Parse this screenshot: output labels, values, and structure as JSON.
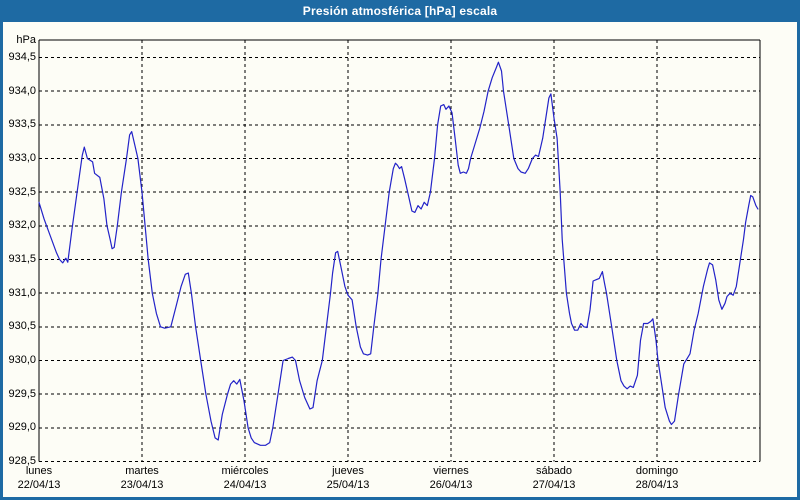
{
  "title": "Presión atmosférica [hPa] escala",
  "colors": {
    "titlebar": "#1e6aa3",
    "window_border": "#1e6aa3",
    "title_text": "#ffffff",
    "line": "#2323c8",
    "grid": "#000000",
    "background": "#fdfdf6",
    "label_text": "#000000"
  },
  "chart_data": {
    "type": "line",
    "title": "Presión atmosférica [hPa] escala",
    "ylabel": "hPa",
    "xlabel": "",
    "ylim": [
      928.5,
      934.5
    ],
    "yticks": [
      "934,5",
      "934,0",
      "933,5",
      "933,0",
      "932,5",
      "932,0",
      "931,5",
      "931,0",
      "930,5",
      "930,0",
      "929,5",
      "929,0",
      "928,5"
    ],
    "grid": "dashed",
    "legend": "none",
    "x_unit": "days since 22/04/13 00:00",
    "categories": [
      {
        "day": "lunes",
        "date": "22/04/13"
      },
      {
        "day": "martes",
        "date": "23/04/13"
      },
      {
        "day": "miércoles",
        "date": "24/04/13"
      },
      {
        "day": "jueves",
        "date": "25/04/13"
      },
      {
        "day": "viernes",
        "date": "26/04/13"
      },
      {
        "day": "sábado",
        "date": "27/04/13"
      },
      {
        "day": "domingo",
        "date": "28/04/13"
      }
    ],
    "series": [
      {
        "name": "Presión atmosférica [hPa]",
        "color": "#2323c8",
        "points": [
          [
            0.0,
            932.35
          ],
          [
            0.05,
            932.1
          ],
          [
            0.11,
            931.85
          ],
          [
            0.17,
            931.6
          ],
          [
            0.2,
            931.5
          ],
          [
            0.23,
            931.45
          ],
          [
            0.26,
            931.52
          ],
          [
            0.28,
            931.46
          ],
          [
            0.32,
            931.95
          ],
          [
            0.37,
            932.5
          ],
          [
            0.42,
            933.05
          ],
          [
            0.44,
            933.17
          ],
          [
            0.47,
            933.0
          ],
          [
            0.52,
            932.95
          ],
          [
            0.54,
            932.78
          ],
          [
            0.59,
            932.72
          ],
          [
            0.63,
            932.4
          ],
          [
            0.66,
            932.0
          ],
          [
            0.69,
            931.8
          ],
          [
            0.71,
            931.66
          ],
          [
            0.73,
            931.68
          ],
          [
            0.76,
            932.0
          ],
          [
            0.8,
            932.5
          ],
          [
            0.85,
            933.0
          ],
          [
            0.88,
            933.35
          ],
          [
            0.9,
            933.4
          ],
          [
            0.93,
            933.2
          ],
          [
            0.96,
            933.0
          ],
          [
            1.0,
            932.5
          ],
          [
            1.03,
            932.0
          ],
          [
            1.06,
            931.5
          ],
          [
            1.1,
            931.0
          ],
          [
            1.14,
            930.7
          ],
          [
            1.18,
            930.5
          ],
          [
            1.22,
            930.48
          ],
          [
            1.28,
            930.5
          ],
          [
            1.33,
            930.8
          ],
          [
            1.38,
            931.1
          ],
          [
            1.42,
            931.28
          ],
          [
            1.45,
            931.3
          ],
          [
            1.48,
            931.0
          ],
          [
            1.52,
            930.5
          ],
          [
            1.57,
            930.0
          ],
          [
            1.62,
            929.5
          ],
          [
            1.67,
            929.1
          ],
          [
            1.71,
            928.85
          ],
          [
            1.74,
            928.82
          ],
          [
            1.78,
            929.2
          ],
          [
            1.83,
            929.5
          ],
          [
            1.86,
            929.65
          ],
          [
            1.89,
            929.7
          ],
          [
            1.92,
            929.65
          ],
          [
            1.95,
            929.72
          ],
          [
            1.99,
            929.4
          ],
          [
            2.03,
            929.0
          ],
          [
            2.06,
            928.85
          ],
          [
            2.09,
            928.78
          ],
          [
            2.15,
            928.74
          ],
          [
            2.2,
            928.74
          ],
          [
            2.24,
            928.78
          ],
          [
            2.27,
            929.0
          ],
          [
            2.32,
            929.5
          ],
          [
            2.37,
            930.0
          ],
          [
            2.42,
            930.03
          ],
          [
            2.46,
            930.05
          ],
          [
            2.49,
            930.0
          ],
          [
            2.53,
            929.7
          ],
          [
            2.58,
            929.45
          ],
          [
            2.63,
            929.28
          ],
          [
            2.66,
            929.3
          ],
          [
            2.7,
            929.7
          ],
          [
            2.75,
            930.0
          ],
          [
            2.79,
            930.5
          ],
          [
            2.83,
            931.0
          ],
          [
            2.85,
            931.3
          ],
          [
            2.88,
            931.6
          ],
          [
            2.9,
            931.62
          ],
          [
            2.93,
            931.4
          ],
          [
            2.97,
            931.1
          ],
          [
            3.0,
            930.97
          ],
          [
            3.04,
            930.9
          ],
          [
            3.08,
            930.5
          ],
          [
            3.12,
            930.2
          ],
          [
            3.15,
            930.1
          ],
          [
            3.19,
            930.08
          ],
          [
            3.22,
            930.1
          ],
          [
            3.25,
            930.5
          ],
          [
            3.29,
            931.0
          ],
          [
            3.32,
            931.5
          ],
          [
            3.36,
            932.0
          ],
          [
            3.4,
            932.5
          ],
          [
            3.44,
            932.85
          ],
          [
            3.46,
            932.93
          ],
          [
            3.48,
            932.9
          ],
          [
            3.5,
            932.85
          ],
          [
            3.52,
            932.88
          ],
          [
            3.55,
            932.7
          ],
          [
            3.58,
            932.5
          ],
          [
            3.62,
            932.22
          ],
          [
            3.65,
            932.2
          ],
          [
            3.68,
            932.3
          ],
          [
            3.71,
            932.25
          ],
          [
            3.74,
            932.35
          ],
          [
            3.77,
            932.3
          ],
          [
            3.8,
            932.5
          ],
          [
            3.84,
            933.0
          ],
          [
            3.87,
            933.5
          ],
          [
            3.9,
            933.78
          ],
          [
            3.93,
            933.8
          ],
          [
            3.95,
            933.73
          ],
          [
            3.98,
            933.78
          ],
          [
            4.01,
            933.68
          ],
          [
            4.04,
            933.3
          ],
          [
            4.07,
            932.9
          ],
          [
            4.09,
            932.78
          ],
          [
            4.12,
            932.8
          ],
          [
            4.15,
            932.78
          ],
          [
            4.17,
            932.85
          ],
          [
            4.19,
            933.0
          ],
          [
            4.23,
            933.2
          ],
          [
            4.28,
            933.45
          ],
          [
            4.32,
            933.7
          ],
          [
            4.36,
            934.0
          ],
          [
            4.4,
            934.2
          ],
          [
            4.44,
            934.35
          ],
          [
            4.46,
            934.43
          ],
          [
            4.49,
            934.3
          ],
          [
            4.51,
            934.0
          ],
          [
            4.56,
            933.5
          ],
          [
            4.61,
            933.0
          ],
          [
            4.65,
            932.85
          ],
          [
            4.68,
            932.8
          ],
          [
            4.72,
            932.78
          ],
          [
            4.75,
            932.85
          ],
          [
            4.79,
            933.0
          ],
          [
            4.82,
            933.05
          ],
          [
            4.85,
            933.03
          ],
          [
            4.89,
            933.3
          ],
          [
            4.92,
            933.6
          ],
          [
            4.95,
            933.9
          ],
          [
            4.97,
            933.96
          ],
          [
            5.0,
            933.6
          ],
          [
            5.03,
            933.3
          ],
          [
            5.06,
            932.5
          ],
          [
            5.08,
            931.8
          ],
          [
            5.1,
            931.4
          ],
          [
            5.12,
            931.0
          ],
          [
            5.15,
            930.7
          ],
          [
            5.17,
            930.55
          ],
          [
            5.2,
            930.45
          ],
          [
            5.23,
            930.45
          ],
          [
            5.26,
            930.55
          ],
          [
            5.29,
            930.5
          ],
          [
            5.32,
            930.49
          ],
          [
            5.35,
            930.75
          ],
          [
            5.38,
            931.18
          ],
          [
            5.41,
            931.2
          ],
          [
            5.44,
            931.22
          ],
          [
            5.47,
            931.32
          ],
          [
            5.49,
            931.15
          ],
          [
            5.51,
            931.0
          ],
          [
            5.56,
            930.5
          ],
          [
            5.61,
            930.0
          ],
          [
            5.65,
            929.7
          ],
          [
            5.68,
            929.62
          ],
          [
            5.71,
            929.58
          ],
          [
            5.74,
            929.62
          ],
          [
            5.77,
            929.6
          ],
          [
            5.81,
            929.78
          ],
          [
            5.84,
            930.3
          ],
          [
            5.87,
            930.55
          ],
          [
            5.91,
            930.55
          ],
          [
            5.94,
            930.58
          ],
          [
            5.96,
            930.62
          ],
          [
            5.99,
            930.3
          ],
          [
            6.01,
            930.0
          ],
          [
            6.04,
            929.7
          ],
          [
            6.08,
            929.3
          ],
          [
            6.12,
            929.1
          ],
          [
            6.14,
            929.05
          ],
          [
            6.17,
            929.1
          ],
          [
            6.21,
            929.5
          ],
          [
            6.26,
            929.95
          ],
          [
            6.32,
            930.1
          ],
          [
            6.36,
            930.45
          ],
          [
            6.4,
            930.7
          ],
          [
            6.45,
            931.1
          ],
          [
            6.49,
            931.35
          ],
          [
            6.51,
            931.45
          ],
          [
            6.54,
            931.42
          ],
          [
            6.57,
            931.2
          ],
          [
            6.6,
            930.9
          ],
          [
            6.63,
            930.76
          ],
          [
            6.66,
            930.85
          ],
          [
            6.68,
            930.95
          ],
          [
            6.71,
            931.0
          ],
          [
            6.74,
            930.97
          ],
          [
            6.77,
            931.1
          ],
          [
            6.81,
            931.5
          ],
          [
            6.84,
            931.8
          ],
          [
            6.86,
            932.05
          ],
          [
            6.89,
            932.3
          ],
          [
            6.91,
            932.45
          ],
          [
            6.93,
            932.43
          ],
          [
            6.96,
            932.3
          ],
          [
            6.98,
            932.25
          ]
        ]
      }
    ]
  }
}
